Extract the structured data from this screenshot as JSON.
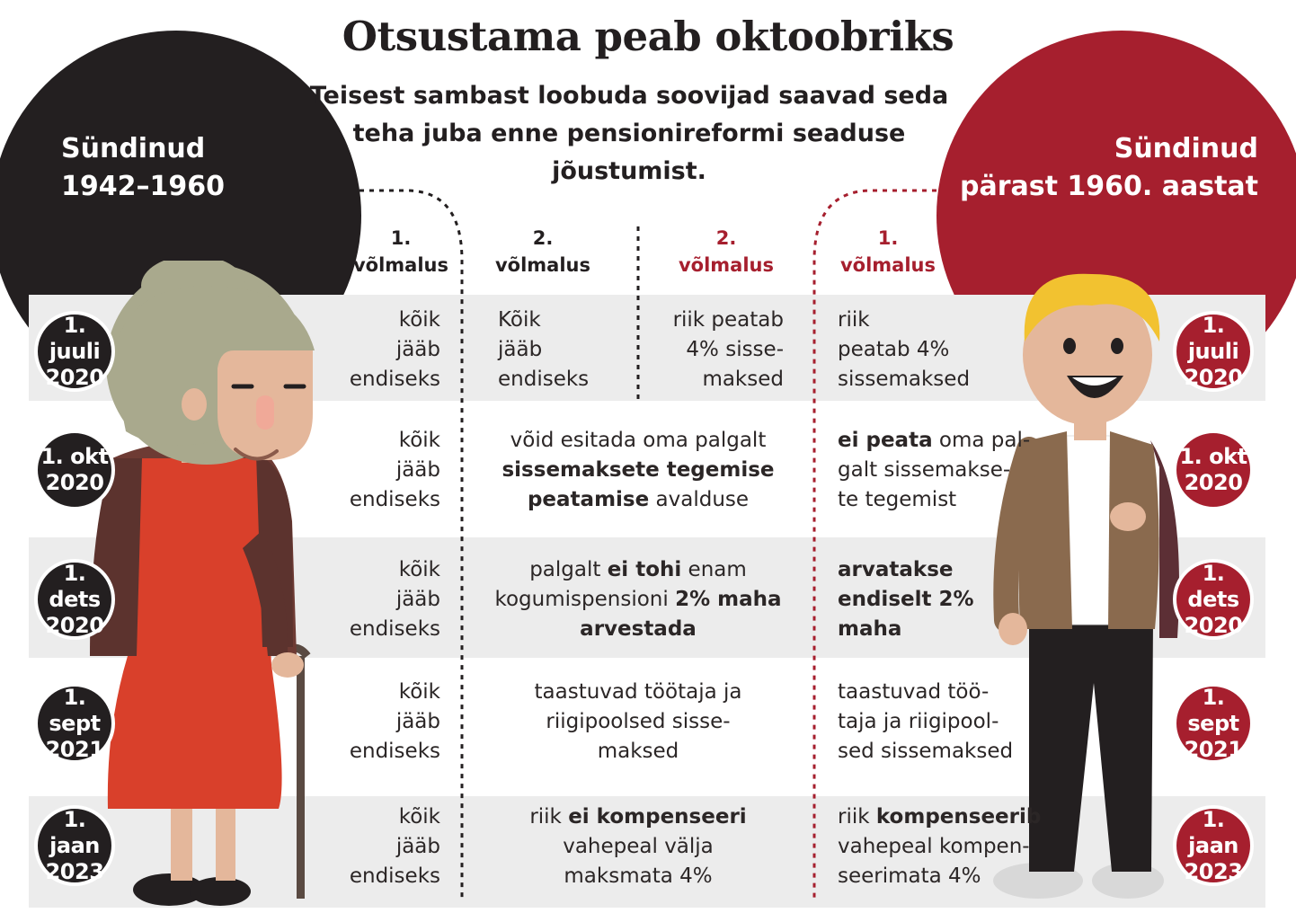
{
  "title": "Otsustama peab oktoobriks",
  "subtitle": "Teisest sambast loobuda soovijad saavad seda teha juba enne pensionireformi seaduse jõustumist.",
  "left_group": {
    "line1": "Sündinud",
    "line2": "1942–1960"
  },
  "right_group": {
    "line1": "Sündinud",
    "line2": "pärast 1960. aastat"
  },
  "columns": [
    {
      "line1": "1.",
      "line2": "võlmalus",
      "color": "#231f20"
    },
    {
      "line1": "2.",
      "line2": "võlmalus",
      "color": "#231f20"
    },
    {
      "line1": "2.",
      "line2": "võlmalus",
      "color": "#a61f2e"
    },
    {
      "line1": "1.",
      "line2": "võlmalus",
      "color": "#a61f2e"
    }
  ],
  "dates": [
    {
      "l1": "1. juuli",
      "l2": "2020"
    },
    {
      "l1": "1. okt",
      "l2": "2020"
    },
    {
      "l1": "1. dets",
      "l2": "2020"
    },
    {
      "l1": "1. sept",
      "l2": "2021"
    },
    {
      "l1": "1. jaan",
      "l2": "2023"
    }
  ],
  "rows": [
    {
      "c1": [
        "kõik",
        "jääb",
        "endiseks"
      ],
      "c2": [
        "Kõik",
        "jääb",
        "endiseks"
      ],
      "c3": [
        "riik peatab",
        "4% sisse-",
        "maksed"
      ],
      "c4": [
        "riik",
        "peatab 4%",
        "sissemaksed"
      ]
    },
    {
      "c1": [
        "kõik",
        "jääb",
        "endiseks"
      ],
      "c2a": "võid esitada oma palgalt",
      "c2b": "sissemaksete tegemise",
      "c2c_bold": "peatamise",
      "c2c_rest": " avalduse",
      "c4a_bold": "ei peata",
      "c4a_rest": " oma pal-",
      "c4b": "galt sissemakse-",
      "c4c": "te tegemist"
    },
    {
      "c1": [
        "kõik",
        "jääb",
        "endiseks"
      ],
      "c2a_pre": "palgalt ",
      "c2a_bold": "ei tohi",
      "c2a_post": " enam",
      "c2b_pre": "kogumispensioni ",
      "c2b_bold": "2% maha",
      "c2c": "arvestada",
      "c4": [
        "arvatakse",
        "endiselt 2%",
        "maha"
      ]
    },
    {
      "c1": [
        "kõik",
        "jääb",
        "endiseks"
      ],
      "c2": [
        "taastuvad töötaja ja",
        "riigipoolsed sisse-",
        "maksed"
      ],
      "c4": [
        "taastuvad töö-",
        "taja ja riigipool-",
        "sed sissemaksed"
      ]
    },
    {
      "c1": [
        "kõik",
        "jääb",
        "endiseks"
      ],
      "c2a_pre": "riik ",
      "c2a_bold": "ei kompenseeri",
      "c2b": "vahepeal välja",
      "c2c": "maksmata 4%",
      "c4a_pre": "riik ",
      "c4a_bold": "kompenseerib",
      "c4b": "vahepeal kompen-",
      "c4c": "seerimata 4%"
    }
  ],
  "colors": {
    "dark": "#231f20",
    "red": "#a61f2e",
    "band": "#ececec"
  }
}
